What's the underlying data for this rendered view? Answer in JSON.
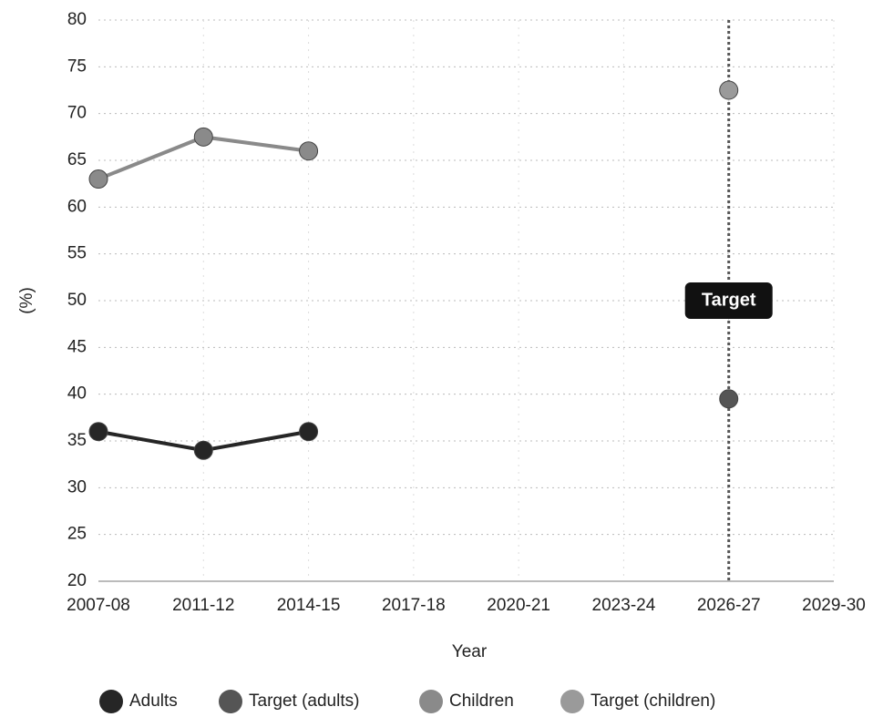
{
  "chart_data": {
    "type": "line",
    "x_label": "Year",
    "y_label": "(%)",
    "categories": [
      "2007-08",
      "2011-12",
      "2014-15",
      "2017-18",
      "2020-21",
      "2023-24",
      "2026-27",
      "2029-30"
    ],
    "series": [
      {
        "name": "Adults",
        "color": "#262626",
        "values": [
          36,
          34,
          36,
          null,
          null,
          null,
          null,
          null
        ]
      },
      {
        "name": "Target (adults)",
        "color": "#555555",
        "values": [
          null,
          null,
          null,
          null,
          null,
          null,
          39.5,
          null
        ]
      },
      {
        "name": "Children",
        "color": "#8a8a8a",
        "values": [
          63,
          67.5,
          66,
          null,
          null,
          null,
          null,
          null
        ]
      },
      {
        "name": "Target (children)",
        "color": "#9a9a9a",
        "values": [
          null,
          null,
          null,
          null,
          null,
          null,
          72.5,
          null
        ]
      }
    ],
    "annotation": "Target",
    "ylim": [
      20,
      80
    ],
    "yticks": [
      20,
      25,
      30,
      35,
      40,
      45,
      50,
      55,
      60,
      65,
      70,
      75,
      80
    ],
    "grid": true,
    "legend": "bottom"
  }
}
